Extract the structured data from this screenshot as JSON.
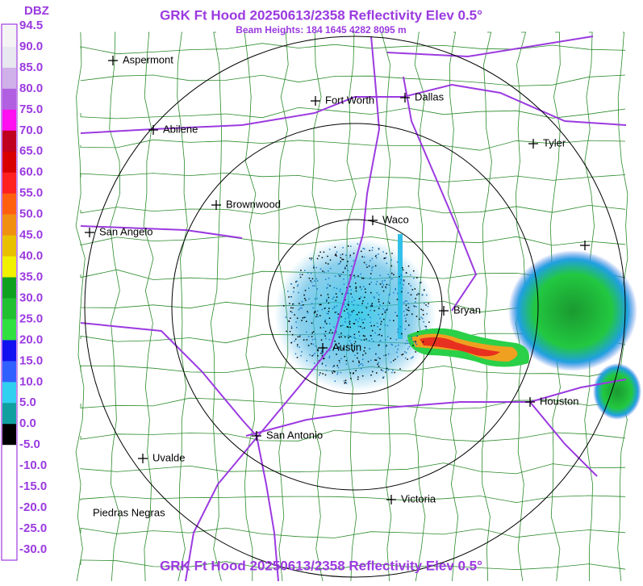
{
  "header": {
    "title": "GRK Ft Hood 20250613/2358 Reflectivity Elev 0.5°",
    "subtitle": "Beam Heights: 184 1645 4282 8095 m",
    "footer": "GRK Ft Hood 20250613/2358 Reflectivity Elev 0.5°"
  },
  "legend": {
    "title": "DBZ",
    "labels": [
      "94.5",
      "90.0",
      "85.0",
      "80.0",
      "75.0",
      "70.0",
      "65.0",
      "60.0",
      "55.0",
      "50.0",
      "45.0",
      "40.0",
      "35.0",
      "30.0",
      "25.0",
      "20.0",
      "15.0",
      "10.0",
      "5.0",
      "0.0",
      "-5.0",
      "-10.0",
      "-15.0",
      "-20.0",
      "-25.0",
      "-30.0"
    ]
  },
  "cities": [
    {
      "name": "Aspermont"
    },
    {
      "name": "Abilene"
    },
    {
      "name": "Fort Worth"
    },
    {
      "name": "Dallas"
    },
    {
      "name": "Tyler"
    },
    {
      "name": "Brownwood"
    },
    {
      "name": "Waco"
    },
    {
      "name": "San Angelo"
    },
    {
      "name": "Bryan"
    },
    {
      "name": "Austin"
    },
    {
      "name": "Houston"
    },
    {
      "name": "San Antonio"
    },
    {
      "name": "Uvalde"
    },
    {
      "name": "Victoria"
    },
    {
      "name": "Piedras Negras"
    }
  ]
}
